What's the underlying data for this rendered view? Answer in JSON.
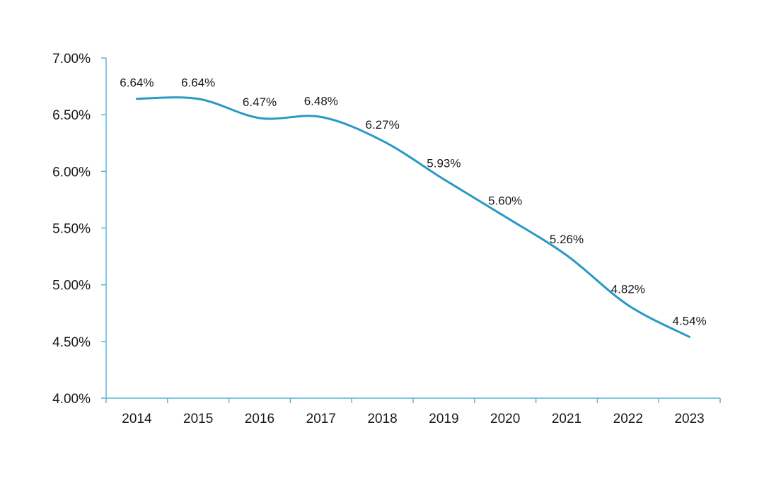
{
  "chart_data": {
    "type": "line",
    "title": "",
    "xlabel": "",
    "ylabel": "",
    "categories": [
      "2014",
      "2015",
      "2016",
      "2017",
      "2018",
      "2019",
      "2020",
      "2021",
      "2022",
      "2023"
    ],
    "series": [
      {
        "name": "",
        "values": [
          6.64,
          6.64,
          6.47,
          6.48,
          6.27,
          5.93,
          5.6,
          5.26,
          4.82,
          4.54
        ],
        "labels": [
          "6.64%",
          "6.64%",
          "6.47%",
          "6.48%",
          "6.27%",
          "5.93%",
          "5.60%",
          "5.26%",
          "4.82%",
          "4.54%"
        ]
      }
    ],
    "ylim": [
      4.0,
      7.0
    ],
    "yticks": [
      4.0,
      4.5,
      5.0,
      5.5,
      6.0,
      6.5,
      7.0
    ],
    "ytick_labels": [
      "4.00%",
      "4.50%",
      "5.00%",
      "5.50%",
      "6.00%",
      "6.50%",
      "7.00%"
    ],
    "grid": false,
    "legend": "none",
    "line_color": "#2a9ac4",
    "axis_color": "#5fb3d6"
  }
}
